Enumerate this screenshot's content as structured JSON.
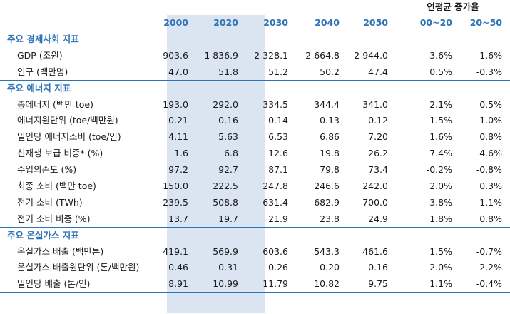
{
  "header": {
    "group_label": "연평균 증가율",
    "columns": [
      "2000",
      "2020",
      "2030",
      "2040",
      "2050",
      "00~20",
      "20~50"
    ]
  },
  "rows": [
    {
      "type": "section",
      "label": "주요 경제사회 지표"
    },
    {
      "type": "data",
      "label": "GDP (조원)",
      "values": [
        "903.6",
        "1 836.9",
        "2 328.1",
        "2 664.8",
        "2 944.0",
        "3.6%",
        "1.6%"
      ]
    },
    {
      "type": "data",
      "label": "인구 (백만명)",
      "values": [
        "47.0",
        "51.8",
        "51.2",
        "50.2",
        "47.4",
        "0.5%",
        "-0.3%"
      ]
    },
    {
      "type": "section",
      "label": "주요 에너지 지표"
    },
    {
      "type": "data",
      "label": "총에너지 (백만 toe)",
      "values": [
        "193.0",
        "292.0",
        "334.5",
        "344.4",
        "341.0",
        "2.1%",
        "0.5%"
      ]
    },
    {
      "type": "data",
      "label": "에너지원단위 (toe/백만원)",
      "values": [
        "0.21",
        "0.16",
        "0.14",
        "0.13",
        "0.12",
        "-1.5%",
        "-1.0%"
      ]
    },
    {
      "type": "data",
      "label": "일인당 에너지소비 (toe/인)",
      "values": [
        "4.11",
        "5.63",
        "6.53",
        "6.86",
        "7.20",
        "1.6%",
        "0.8%"
      ]
    },
    {
      "type": "data",
      "label": "신재생 보급 비중* (%)",
      "values": [
        "1.6",
        "6.8",
        "12.6",
        "19.8",
        "26.2",
        "7.4%",
        "4.6%"
      ]
    },
    {
      "type": "data",
      "label": "수입의존도 (%)",
      "values": [
        "97.2",
        "92.7",
        "87.1",
        "79.8",
        "73.4",
        "-0.2%",
        "-0.8%"
      ]
    },
    {
      "type": "data",
      "label": "최종 소비 (백만 toe)",
      "values": [
        "150.0",
        "222.5",
        "247.8",
        "246.6",
        "242.0",
        "2.0%",
        "0.3%"
      ]
    },
    {
      "type": "data",
      "label": "전기 소비 (TWh)",
      "values": [
        "239.5",
        "508.8",
        "631.4",
        "682.9",
        "700.0",
        "3.8%",
        "1.1%"
      ]
    },
    {
      "type": "data",
      "label": "전기 소비 비중 (%)",
      "values": [
        "13.7",
        "19.7",
        "21.9",
        "23.8",
        "24.9",
        "1.8%",
        "0.8%"
      ]
    },
    {
      "type": "section",
      "label": "주요 온실가스 지표"
    },
    {
      "type": "data",
      "label": "온실가스 배출 (백만톤)",
      "values": [
        "419.1",
        "569.9",
        "603.6",
        "543.3",
        "461.6",
        "1.5%",
        "-0.7%"
      ]
    },
    {
      "type": "data",
      "label": "온실가스 배출원단위 (톤/백만원)",
      "values": [
        "0.46",
        "0.31",
        "0.26",
        "0.20",
        "0.16",
        "-2.0%",
        "-2.2%"
      ]
    },
    {
      "type": "data",
      "label": "일인당 배출 (톤/인)",
      "values": [
        "8.91",
        "10.99",
        "11.79",
        "10.82",
        "9.75",
        "1.1%",
        "-0.4%"
      ]
    }
  ]
}
